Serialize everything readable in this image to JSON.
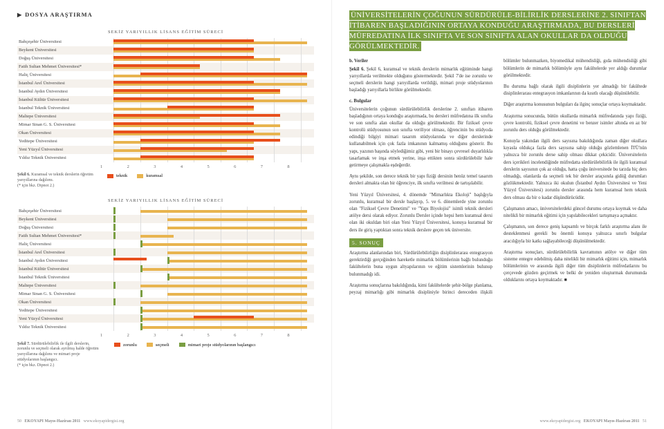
{
  "colors": {
    "accent": "#7a9e42",
    "teknik": "#e84f1c",
    "kuramsal": "#e8b44f",
    "zorunlu": "#e84f1c",
    "secmeli": "#e8b44f",
    "mimari_start": "#7a9e42",
    "row_alt": "#f5f1ec",
    "grid": "#dddddd"
  },
  "dossier": "DOSYA ARAŞTIRMA",
  "chart_title": "SEKİZ YARIYILLIK LİSANS EĞİTİM SÜRECİ",
  "universities": [
    "Bahçeşehir Üniversitesi",
    "Beykent Üniversitesi",
    "Doğuş Üniversitesi",
    "Fatih Sultan Mehmet Üniversitesi*",
    "Haliç Üniversitesi",
    "İstanbul Arel Üniversitesi",
    "İstanbul Aydın Üniversitesi",
    "İstanbul Kültür Üniversitesi",
    "İstanbul Teknik Üniversitesi",
    "Maltepe Üniversitesi",
    "Mimar Sinan G. S. Üniversitesi",
    "Okan Üniversitesi",
    "Yeditepe Üniversitesi",
    "Yeni Yüzyıl Üniversitesi",
    "Yıldız Teknik Üniversitesi"
  ],
  "axis_ticks": [
    1,
    2,
    3,
    4,
    5,
    6,
    7,
    8
  ],
  "chart6": {
    "caption_bold": "Şekil 6.",
    "caption": "Kuramsal ve teknik derslerin öğretim yarıyıllarına dağılımı.",
    "caption_note": "(* için bkz. Dipnot 2.)",
    "legend": [
      {
        "label": "teknik",
        "key": "teknik"
      },
      {
        "label": "kuramsal",
        "key": "kuramsal"
      }
    ],
    "series": [
      {
        "t": [
          1,
          6
        ],
        "k": [
          1,
          8
        ]
      },
      {
        "t": [
          1,
          6
        ],
        "k": [
          1,
          6
        ]
      },
      {
        "t": [
          1,
          6
        ],
        "k": [
          1,
          7
        ]
      },
      {
        "t": [
          1,
          4
        ],
        "k": [
          1,
          4
        ]
      },
      {
        "t": [
          2,
          8
        ],
        "k": [
          1,
          8
        ]
      },
      {
        "t": [
          1,
          6
        ],
        "k": [
          1,
          8
        ]
      },
      {
        "t": [
          1,
          7
        ],
        "k": [
          1,
          7
        ]
      },
      {
        "t": [
          1,
          6
        ],
        "k": [
          1,
          8
        ]
      },
      {
        "t": [
          3,
          6
        ],
        "k": [
          1,
          6
        ]
      },
      {
        "t": [
          1,
          7
        ],
        "k": [
          1,
          4
        ]
      },
      {
        "t": [
          1,
          6
        ],
        "k": [
          1,
          7
        ]
      },
      {
        "t": [
          1,
          6
        ],
        "k": [
          1,
          7
        ]
      },
      {
        "t": [
          2,
          7
        ],
        "k": [
          1,
          6
        ]
      },
      {
        "t": [
          2,
          6
        ],
        "k": [
          1,
          5
        ]
      },
      {
        "t": [
          2,
          6
        ],
        "k": [
          1,
          6
        ]
      }
    ]
  },
  "chart7": {
    "caption_bold": "Şekil 7.",
    "caption": "Sürdürülebilirlik ile ilgili derslerin, zorunlu ve seçmeli olarak ayrılmış halde öğretim yarıyıllarına dağılımı ve mimari proje stüdyolarının başlangıcı.",
    "caption_note": "(* için bkz. Dipnot 2.)",
    "legend": [
      {
        "label": "zorunlu",
        "key": "zorunlu"
      },
      {
        "label": "seçmeli",
        "key": "secmeli"
      },
      {
        "label": "mimari proje stüdyolarının başlangıcı",
        "key": "mimari_start"
      }
    ],
    "series": [
      {
        "z": [],
        "s": [
          2,
          8
        ],
        "m": 1
      },
      {
        "z": [],
        "s": [
          3,
          8
        ],
        "m": 1
      },
      {
        "z": [],
        "s": [
          3,
          8
        ],
        "m": 1
      },
      {
        "z": [],
        "s": [
          2,
          3
        ],
        "m": 1
      },
      {
        "z": [],
        "s": [
          2,
          8
        ],
        "m": 2
      },
      {
        "z": [],
        "s": [
          3,
          8
        ],
        "m": 1
      },
      {
        "z": [
          1,
          2
        ],
        "s": [
          3,
          8
        ],
        "m": 3
      },
      {
        "z": [],
        "s": [
          2,
          8
        ],
        "m": 2
      },
      {
        "z": [],
        "s": [
          3,
          8
        ],
        "m": 3
      },
      {
        "z": [],
        "s": [
          2,
          8
        ],
        "m": 1
      },
      {
        "z": [],
        "s": [
          3,
          8
        ],
        "m": 2
      },
      {
        "z": [],
        "s": [
          2,
          8
        ],
        "m": 1
      },
      {
        "z": [],
        "s": [
          2,
          8
        ],
        "m": 2
      },
      {
        "z": [
          4,
          6
        ],
        "s": [
          2,
          8
        ],
        "m": 2
      },
      {
        "z": [],
        "s": [
          2,
          8
        ],
        "m": 2
      }
    ]
  },
  "highlight": "ÜNİVERSİTELERİN ÇOĞUNUN SÜRDÜRÜLE-BİLİRLİK DERSLERİNE 2. SINIFTAN İTİBAREN BAŞLADIĞININ ORTAYA KONDUĞU ARAŞTIRMADA, BU DERSLERİ MÜFREDATINA İLK SINIFTA VE SON SINIFTA ALAN OKULLAR DA OLDUĞU GÖRÜLMEKTEDİR.",
  "right": {
    "b_veriler_head": "b. Veriler",
    "b_veriler": "Şekil 6, kuramsal ve teknik derslerin mimarlık eğitiminde hangi yarıyıllarda verilmekte olduğunu göstermektedir. Şekil 7'de ise zorunlu ve seçmeli derslerin hangi yarıyıllarda verildiği, mimari proje stüdyolarının başladığı yarıyıllarla birlikte görülmektedir.",
    "c_bulgular_head": "c. Bulgular",
    "c_p1": "Üniversitelerin çoğunun sürdürülebilirlik derslerine 2. sınıftan itibaren başladığının ortaya konduğu araştırmada, bu dersleri müfredatına ilk sınıfta ve son sınıfta alan okullar da olduğu görülmektedir. Bir fiziksel çevre kontrolü stüdyosunun son sınıfta veriliyor olması, öğrencinin bu stüdyoda edindiği bilgiyi mimari tasarım stüdyolarında ve diğer derslerinde kullanabilmek için çok fazla imkanının kalmamış olduğunu gösterir. Bu yapı, yazının başında söylediğimiz gibi, yeni bir binayı çevresel duyarlılıkla tasarlamak ve inşa etmek yerine, inşa ettikten sonra sürdürülebilir hale getirmeye çalışmakla eşdeğerdir.",
    "c_p2": "Aynı şekilde, son derece teknik bir yapı fiziği dersinin henüz temel tasarım dersleri almakta olan bir öğrenciye, ilk sınıfta verilmesi de tartışılabilir.",
    "c_p3": "Yeni Yüzyıl Üniversitesi, 4. dönemde \"Mimarlıkta Ekoloji\" başlığıyla zorunlu, kuramsal bir dersle başlayıp, 5. ve 6. dönemlerde yine zorunlu olan \"Fiziksel Çevre Denetimi\" ve \"Yapı Biyolojisi\" isimli teknik dersleri atölye dersi olarak ediyor. Zorunlu Dersler içinde hepsi hem kuramsal dersi olan iki okuldan biri olan Yeni Yüzyıl Üniversitesi, konuya kuramsal bir ders ile giriş yaptıktan sonra teknik derslere geçen tek üniversite.",
    "sonuc_head": "5. SONUÇ",
    "s_p1": "Araştırma alanlarından biri, Sürdürülebilirliğin disiplinlerarası entegrasyon gerektirdiği gerçeğinden hareketle mimarlık bölümlerinin bağlı bulunduğu fakültelerin buna uygun altyapılarının ve eğitim sistemlerinin bulunup bulunmadığı idi.",
    "s_p2": "Araştırma sonuçlarına bakıldığında, kimi fakültelerde şehir-bölge planlama, peyzaj mimarlığı gibi mimarlık disipliniyle birinci dereceden ilişkili bölümler bulunmazken, biyomedikal mühendisliği, gıda mühendisliği gibi bölümlerin de mimarlık bölümüyle aynı fakültelerde yer aldığı durumlar görülmektedir.",
    "s_p3": "Bu duruma bağlı olarak ilgili disiplinlerin yer almadığı bir fakültede disiplinlerarası entegrasyon imkanlarının da kısıtlı olacağı düşünülebilir.",
    "s_p4": "Diğer araştırma konusunun bulguları da ilginç sonuçlar ortaya koymaktadır.",
    "s_p5": "Araştırma sonucunda, bütün okullarda mimarlık müfredatında yapı fiziği, çevre kontrolü, fiziksel çevre denetimi ve benzer isimler altında en az bir zorunlu ders olduğu görülmektedir.",
    "s_p6": "Konuyla yakından ilgili ders sayısına bakıldığında zaman diğer okullara kıyasla oldukça fazla ders sayısına sahip olduğu gözlemlenen İTÜ'nün yalnızca bir zorunlu derse sahip olması dikkat çekicidir. Üniversitelerin ders içerikleri incelendiğinde müfredatta sürdürülebilirlik ile ilgili kuramsal derslerin sayısının çok az olduğu, hatta çoğu üniversitede bu tarzda hiç ders olmadığı, olanlarda da seçmeli tek bir dersler araçsınıla gidiiğ durumları gözlükmektedir. Yalnızca iki okulun (İstanbul Aydın Üniversitesi ve Yeni Yüzyıl Üniversitesi) zorunlu dersler arasında hem kuramsal hem teknik ders olması da bir o kadar düşündürücüdür.",
    "s_p7": "Çalışmanın amacı, üniversitelerdeki güncel durumu ortaya koymak ve daha nitelikli bir mimarlık eğitimi için yapılabilecekleri tartışmaya açmaktır.",
    "s_p8": "Çalışmanın, son derece geniş kapsamlı ve birçok farklı araştırma alanı ile desteklenmesi gerekli bu önemli konuya yalnızca sınırlı bulgular aracılığıyla bir katkı sağlayabileceği düşünülmektedir.",
    "s_p9": "Araştırma sonuçları, sürdürülebilirlik kavramının atölye ve diğer tüm sisteme entegre edebilmiş daha nitelikli bir mimarlık eğitimi için, mimarlık bölümlerinin ve arasında ilgili diğer tüm disiplinlerin müfredatlarını bu çerçevede gözden geçirmek ve belki de yeniden oluşturmak durumunda olduklarını ortaya koymaktadır. ■"
  },
  "footer": {
    "left_page_num": "50",
    "right_page_num": "51",
    "issue": "EKOYAPI Mayıs-Haziran 2011",
    "url": "www.ekoyapidergisi.org"
  }
}
